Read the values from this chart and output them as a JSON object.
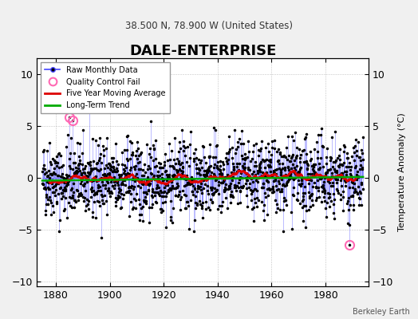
{
  "title": "DALE-ENTERPRISE",
  "subtitle": "38.500 N, 78.900 W (United States)",
  "ylabel": "Temperature Anomaly (°C)",
  "credit": "Berkeley Earth",
  "year_start": 1875,
  "year_end": 1993,
  "ylim": [
    -10.5,
    11.5
  ],
  "yticks": [
    -10,
    -5,
    0,
    5,
    10
  ],
  "xticks": [
    1880,
    1900,
    1920,
    1940,
    1960,
    1980
  ],
  "background_color": "#f0f0f0",
  "plot_bg_color": "#ffffff",
  "line_color": "#4444ff",
  "marker_color": "#000000",
  "moving_avg_color": "#dd0000",
  "trend_color": "#00aa00",
  "qc_fail_color": "#ff69b4",
  "seed": 42,
  "num_months": 1416,
  "trend_slope": 0.003,
  "trend_intercept": -0.3
}
